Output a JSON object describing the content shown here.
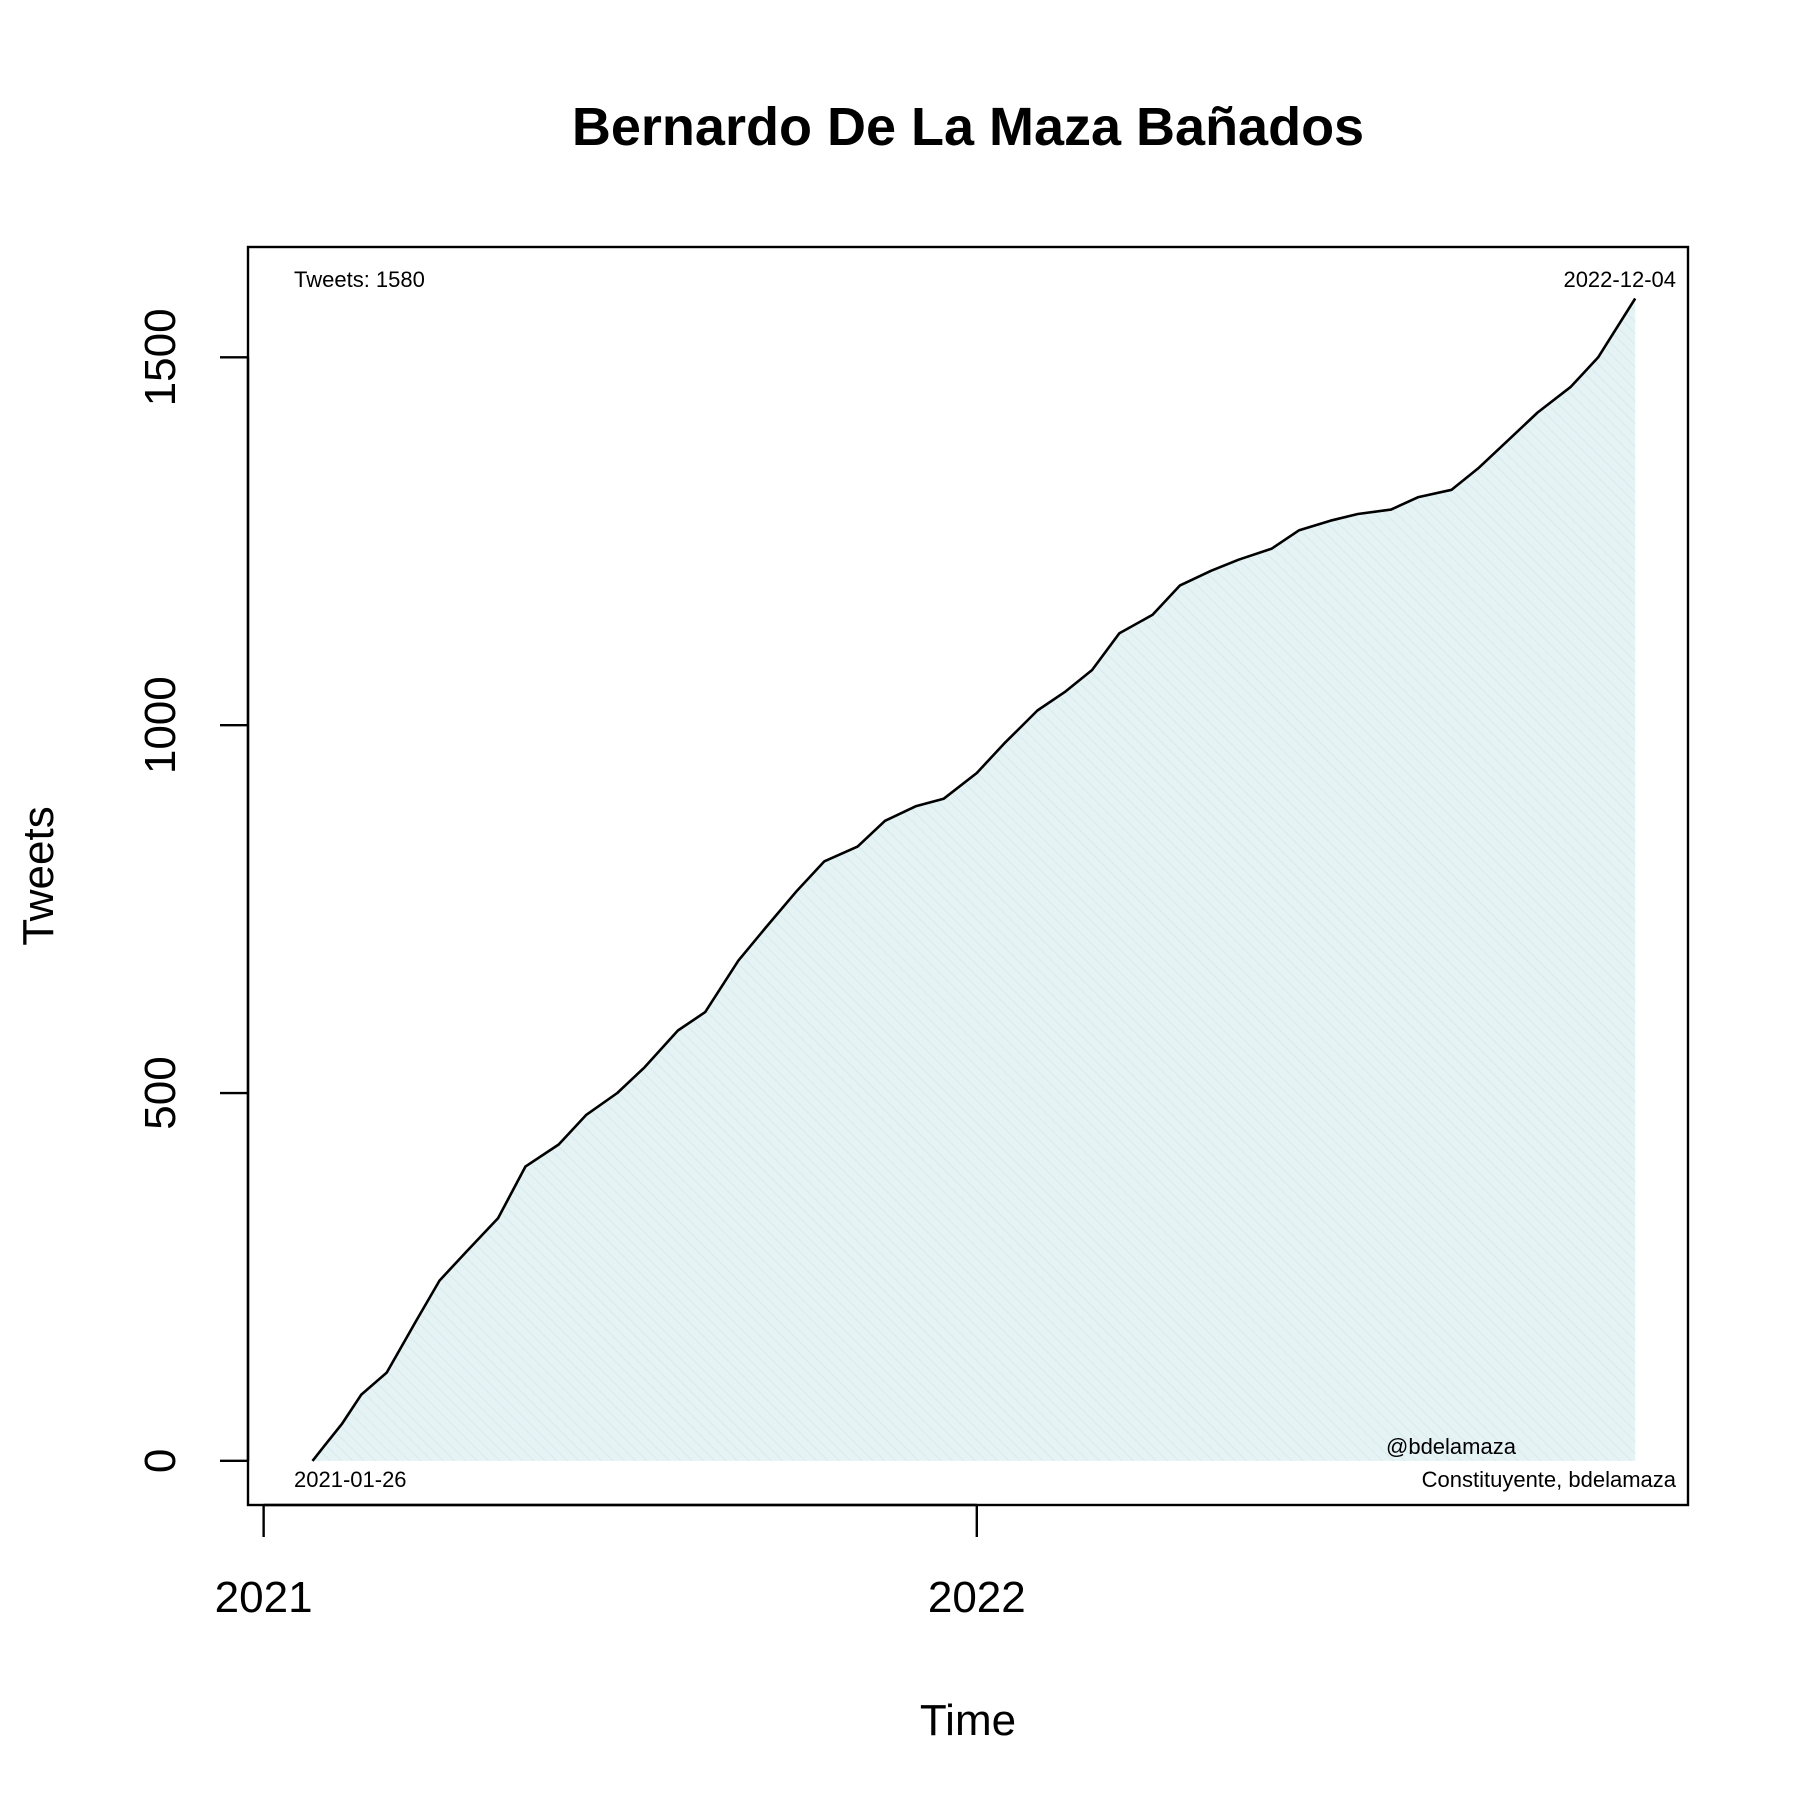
{
  "chart_data": {
    "type": "area",
    "title": "Bernardo De La Maza Bañados",
    "xlabel": "Time",
    "ylabel": "Tweets",
    "x_axis": "date",
    "xlim": [
      "2020-12-24",
      "2022-12-31"
    ],
    "ylim": [
      -60,
      1650
    ],
    "x_ticks": [
      {
        "value": "2021-01-01",
        "label": "2021"
      },
      {
        "value": "2022-01-01",
        "label": "2022"
      }
    ],
    "y_ticks": [
      0,
      500,
      1000,
      1500
    ],
    "grid": false,
    "fill_color": "#e6f3f5",
    "line_color": "#000000",
    "annotations": {
      "top_left": "Tweets: 1580",
      "top_right": "2022-12-04",
      "bottom_left": "2021-01-26",
      "bottom_right_1": "@bdelamaza",
      "bottom_right_2": "Constituyente, bdelamaza"
    },
    "series": [
      {
        "x": [
          "2021-01-26",
          "2021-02-01",
          "2021-02-10",
          "2021-02-20",
          "2021-03-05",
          "2021-03-20",
          "2021-04-01",
          "2021-04-15",
          "2021-05-01",
          "2021-05-15",
          "2021-06-01",
          "2021-06-15",
          "2021-07-01",
          "2021-07-15",
          "2021-08-01",
          "2021-08-15",
          "2021-09-01",
          "2021-09-15",
          "2021-10-01",
          "2021-10-15",
          "2021-11-01",
          "2021-11-15",
          "2021-12-01",
          "2021-12-15",
          "2022-01-01",
          "2022-01-15",
          "2022-02-01",
          "2022-02-15",
          "2022-03-01",
          "2022-03-15",
          "2022-04-01",
          "2022-04-15",
          "2022-05-01",
          "2022-05-15",
          "2022-06-01",
          "2022-06-15",
          "2022-07-01",
          "2022-07-15",
          "2022-08-01",
          "2022-08-15",
          "2022-09-01",
          "2022-09-15",
          "2022-10-01",
          "2022-10-15",
          "2022-11-01",
          "2022-11-15",
          "2022-12-04"
        ],
        "values": [
          0,
          20,
          50,
          90,
          120,
          190,
          245,
          285,
          330,
          400,
          430,
          470,
          500,
          535,
          585,
          610,
          680,
          725,
          775,
          815,
          835,
          870,
          890,
          900,
          935,
          975,
          1020,
          1045,
          1075,
          1125,
          1150,
          1190,
          1210,
          1225,
          1240,
          1265,
          1278,
          1287,
          1293,
          1310,
          1320,
          1350,
          1390,
          1425,
          1460,
          1500,
          1580
        ]
      }
    ]
  }
}
